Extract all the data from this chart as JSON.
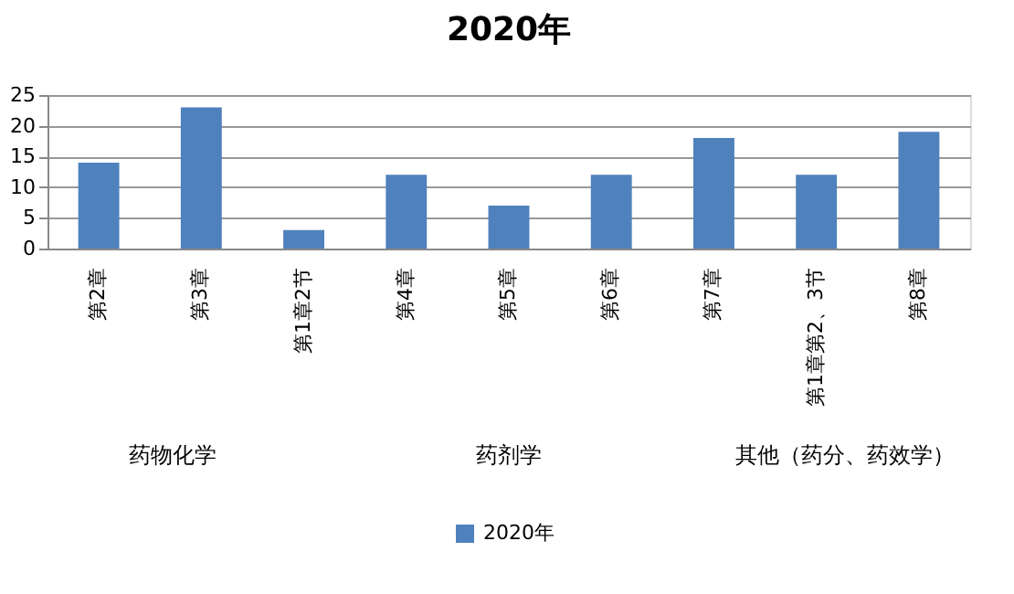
{
  "chart_data": {
    "type": "bar",
    "title": "2020年",
    "categories": [
      "第2章",
      "第3章",
      "第1章2节",
      "第4章",
      "第5章",
      "第6章",
      "第7章",
      "第1章第2、3节",
      "第8章"
    ],
    "series": [
      {
        "name": "2020年",
        "color": "#4f81bd",
        "values": [
          14,
          23,
          3,
          12,
          7,
          12,
          18,
          12,
          19
        ]
      }
    ],
    "annotations": [
      "药物化学",
      "药剂学",
      "其他（药分、药效学）"
    ],
    "ylim": [
      0,
      25
    ],
    "yticks": [
      0,
      5,
      10,
      15,
      20,
      25
    ],
    "grid": "y",
    "legend": "bottom"
  }
}
